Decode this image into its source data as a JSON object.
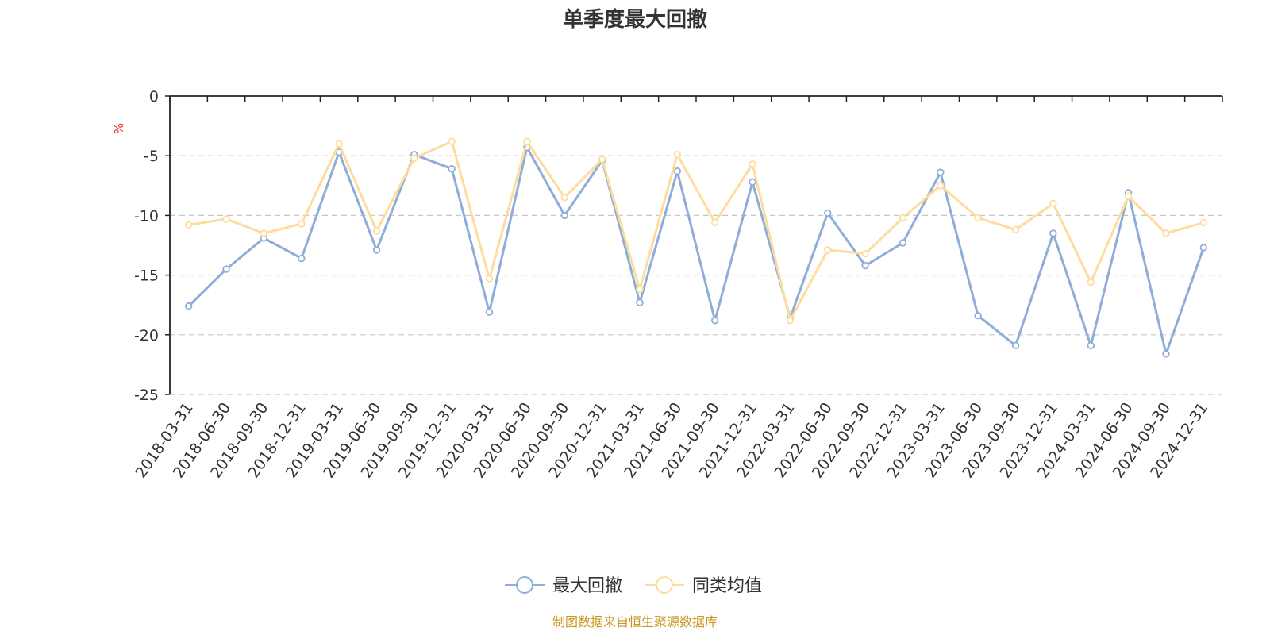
{
  "source": "制图数据来自恒生聚源数据库",
  "colors": {
    "series1": "#8eaed9",
    "series2": "#fddc9e",
    "unit": "#e8262b",
    "source": "#c8961e",
    "grid": "#c8c8c8",
    "axis": "#222222",
    "text": "#333333"
  },
  "chart_data": {
    "type": "line",
    "title": "单季度最大回撤",
    "ylabel": "%",
    "ylim": [
      -25,
      0
    ],
    "yticks": [
      0,
      -5,
      -10,
      -15,
      -20,
      -25
    ],
    "grid": "horizontal-dashed",
    "legend": "bottom-center",
    "categories": [
      "2018-03-31",
      "2018-06-30",
      "2018-09-30",
      "2018-12-31",
      "2019-03-31",
      "2019-06-30",
      "2019-09-30",
      "2019-12-31",
      "2020-03-31",
      "2020-06-30",
      "2020-09-30",
      "2020-12-31",
      "2021-03-31",
      "2021-06-30",
      "2021-09-30",
      "2021-12-31",
      "2022-03-31",
      "2022-06-30",
      "2022-09-30",
      "2022-12-31",
      "2023-03-31",
      "2023-06-30",
      "2023-09-30",
      "2023-12-31",
      "2024-03-31",
      "2024-06-30",
      "2024-09-30",
      "2024-12-31"
    ],
    "series": [
      {
        "name": "最大回撤",
        "color": "#8eaed9",
        "values": [
          -17.6,
          -14.5,
          -11.9,
          -13.6,
          -4.7,
          -12.9,
          -4.9,
          -6.1,
          -18.1,
          -4.3,
          -10.0,
          -5.4,
          -17.3,
          -6.3,
          -18.8,
          -7.2,
          -18.6,
          -9.8,
          -14.2,
          -12.3,
          -6.4,
          -18.4,
          -20.9,
          -11.5,
          -20.9,
          -8.1,
          -21.6,
          -12.7
        ]
      },
      {
        "name": "同类均值",
        "color": "#fddc9e",
        "values": [
          -10.8,
          -10.3,
          -11.5,
          -10.7,
          -4.0,
          -11.3,
          -5.2,
          -3.8,
          -15.3,
          -3.8,
          -8.5,
          -5.3,
          -16.2,
          -4.9,
          -10.6,
          -5.7,
          -18.8,
          -12.9,
          -13.2,
          -10.2,
          -7.5,
          -10.2,
          -11.2,
          -9.0,
          -15.6,
          -8.4,
          -11.5,
          -10.6
        ]
      }
    ]
  }
}
